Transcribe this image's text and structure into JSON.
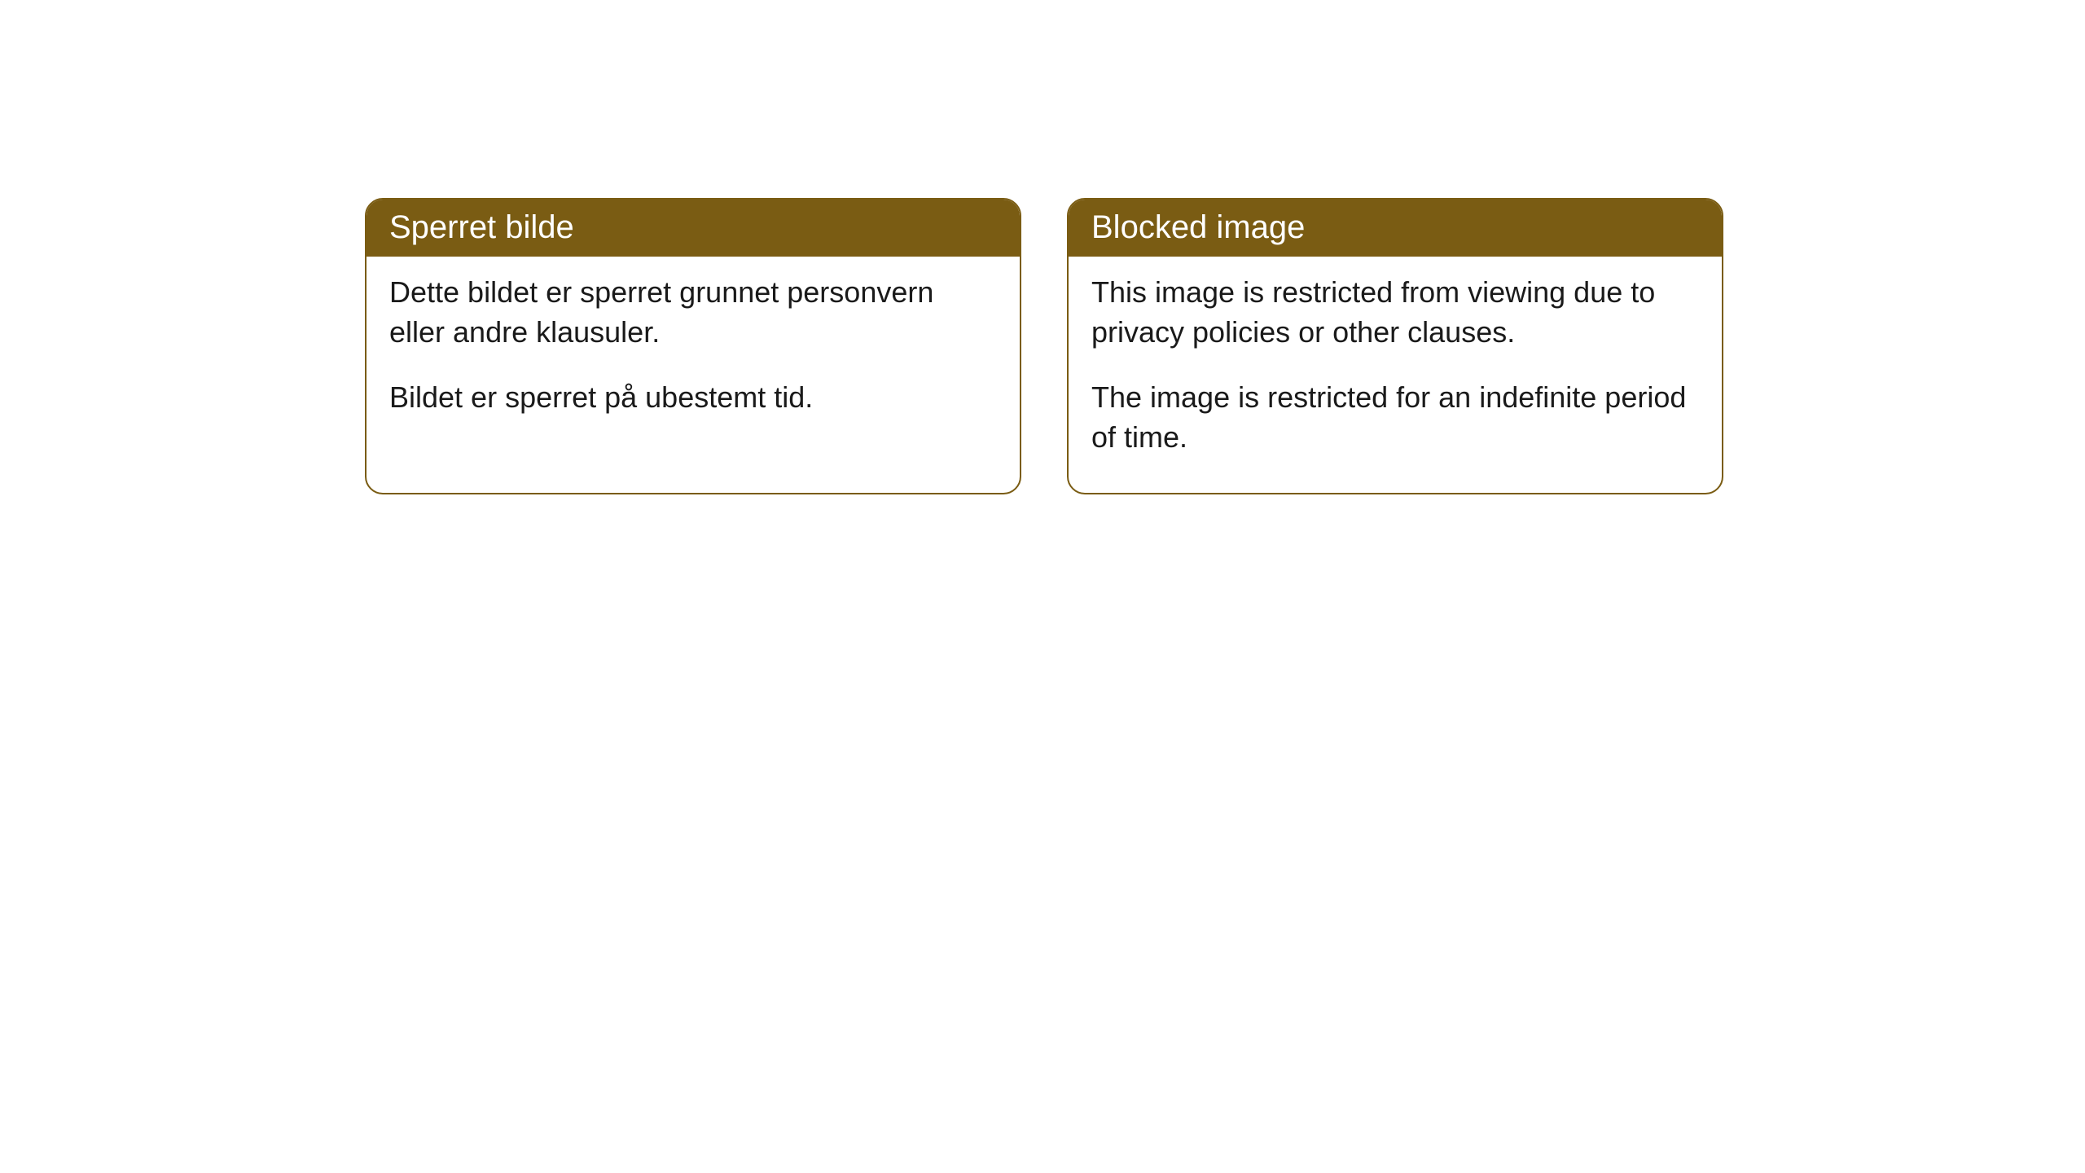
{
  "cards": [
    {
      "title": "Sperret bilde",
      "paragraph1": "Dette bildet er sperret grunnet personvern eller andre klausuler.",
      "paragraph2": "Bildet er sperret på ubestemt tid."
    },
    {
      "title": "Blocked image",
      "paragraph1": "This image is restricted from viewing due to privacy policies or other clauses.",
      "paragraph2": "The image is restricted for an indefinite period of time."
    }
  ],
  "styling": {
    "header_bg": "#7a5c13",
    "header_text_color": "#ffffff",
    "border_color": "#7a5c13",
    "body_bg": "#ffffff",
    "body_text_color": "#1a1a1a",
    "border_radius": 22,
    "title_fontsize": 40,
    "body_fontsize": 36
  }
}
